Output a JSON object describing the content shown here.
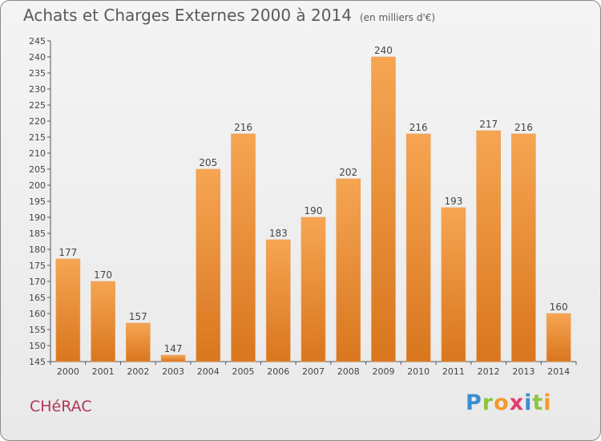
{
  "chart_data": {
    "type": "bar",
    "title": "Achats et Charges Externes 2000 à 2014",
    "subtitle": "(en milliers d'€)",
    "categories": [
      "2000",
      "2001",
      "2002",
      "2003",
      "2004",
      "2005",
      "2006",
      "2007",
      "2008",
      "2009",
      "2010",
      "2011",
      "2012",
      "2013",
      "2014"
    ],
    "values": [
      177,
      170,
      157,
      147,
      205,
      216,
      183,
      190,
      202,
      240,
      216,
      193,
      217,
      216,
      160
    ],
    "ylim": [
      145,
      245
    ],
    "yticks": [
      145,
      150,
      155,
      160,
      165,
      170,
      175,
      180,
      185,
      190,
      195,
      200,
      205,
      210,
      215,
      220,
      225,
      230,
      235,
      240,
      245
    ],
    "grid": false,
    "bar_color": "#f29b45",
    "bar_color_dark": "#e07d22"
  },
  "footer": {
    "commune": "CHéRAC",
    "logo": "Proxiti"
  }
}
